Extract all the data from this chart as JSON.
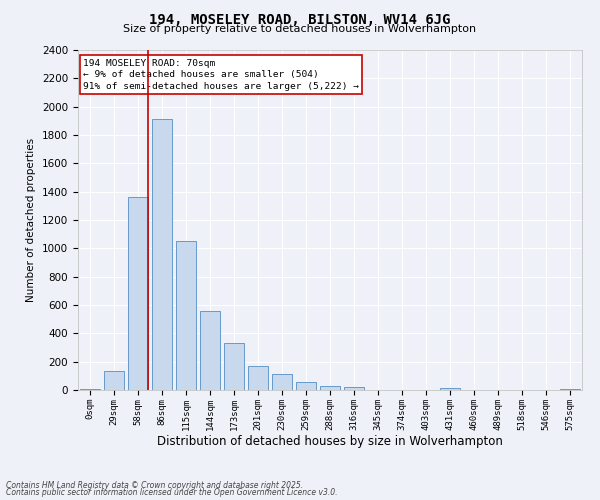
{
  "title": "194, MOSELEY ROAD, BILSTON, WV14 6JG",
  "subtitle": "Size of property relative to detached houses in Wolverhampton",
  "xlabel": "Distribution of detached houses by size in Wolverhampton",
  "ylabel": "Number of detached properties",
  "bar_color": "#c8d8ed",
  "bar_edge_color": "#6699cc",
  "categories": [
    "0sqm",
    "29sqm",
    "58sqm",
    "86sqm",
    "115sqm",
    "144sqm",
    "173sqm",
    "201sqm",
    "230sqm",
    "259sqm",
    "288sqm",
    "316sqm",
    "345sqm",
    "374sqm",
    "403sqm",
    "431sqm",
    "460sqm",
    "489sqm",
    "518sqm",
    "546sqm",
    "575sqm"
  ],
  "values": [
    10,
    135,
    1360,
    1910,
    1055,
    555,
    330,
    170,
    110,
    55,
    30,
    20,
    0,
    0,
    0,
    15,
    0,
    0,
    0,
    0,
    10
  ],
  "ylim": [
    0,
    2400
  ],
  "yticks": [
    0,
    200,
    400,
    600,
    800,
    1000,
    1200,
    1400,
    1600,
    1800,
    2000,
    2200,
    2400
  ],
  "annotation_title": "194 MOSELEY ROAD: 70sqm",
  "annotation_line1": "← 9% of detached houses are smaller (504)",
  "annotation_line2": "91% of semi-detached houses are larger (5,222) →",
  "annotation_box_color": "#ffffff",
  "annotation_box_edge": "#cc0000",
  "property_line_color": "#cc0000",
  "background_color": "#eef2f8",
  "grid_color": "#ffffff",
  "footer_line1": "Contains HM Land Registry data © Crown copyright and database right 2025.",
  "footer_line2": "Contains public sector information licensed under the Open Government Licence v3.0."
}
